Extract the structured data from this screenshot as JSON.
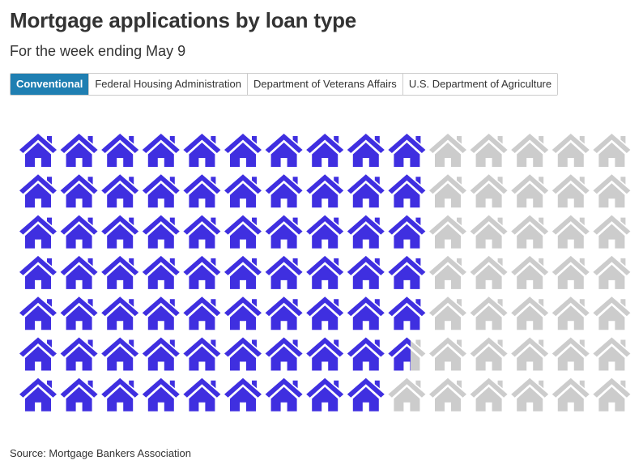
{
  "header": {
    "title": "Mortgage applications by loan type",
    "subtitle": "For the week ending May 9"
  },
  "tabs": [
    {
      "label": "Conventional",
      "active": true
    },
    {
      "label": "Federal Housing Administration",
      "active": false
    },
    {
      "label": "Department of Veterans Affairs",
      "active": false
    },
    {
      "label": "U.S. Department of Agriculture",
      "active": false
    }
  ],
  "footer": {
    "source": "Source: Mortgage Bankers Association"
  },
  "colors": {
    "filled": "#3f2fe0",
    "empty": "#cccccc",
    "active_tab": "#1f7fb2"
  },
  "icon": "house-icon",
  "chart_data": {
    "type": "pictogram",
    "icons_total": 105,
    "value_icons": 68.6,
    "rows": 7,
    "columns": 15,
    "fill_order": "by column, left to right, top to bottom"
  }
}
